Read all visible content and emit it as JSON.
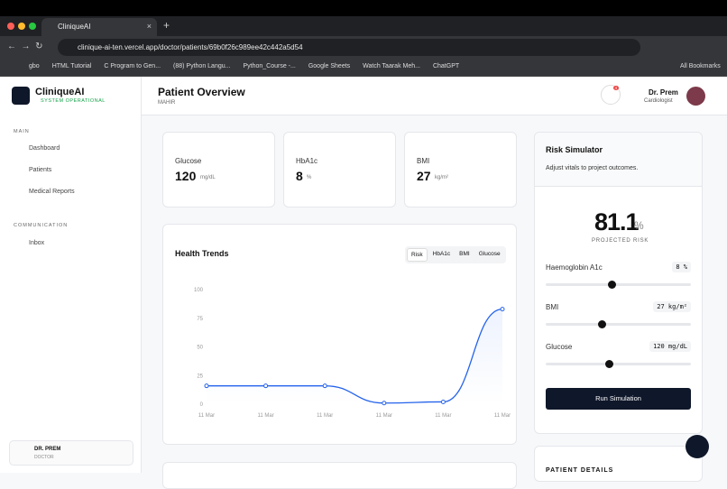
{
  "browser": {
    "tab_title": "CliniqueAI",
    "url": "clinique-ai-ten.vercel.app/doctor/patients/69b0f26c989ee42c442a5d54",
    "bookmarks": [
      "gbo",
      "HTML Tutorial",
      "C Program to Gen...",
      "(88) Python Langu...",
      "Python_Course -...",
      "Google Sheets",
      "Watch Taarak Meh...",
      "ChatGPT"
    ],
    "all_bookmarks": "All Bookmarks"
  },
  "sidebar": {
    "brand": "CliniqueAI",
    "status": "SYSTEM OPERATIONAL",
    "main_heading": "MAIN",
    "main_items": [
      "Dashboard",
      "Patients",
      "Medical Reports"
    ],
    "comm_heading": "COMMUNICATION",
    "comm_items": [
      "Inbox"
    ],
    "user_name": "DR. PREM",
    "user_role": "DOCTOR"
  },
  "header": {
    "title": "Patient Overview",
    "patient": "MAHIR",
    "notifications": "4",
    "doctor": "Dr. Prem",
    "specialty": "Cardiologist"
  },
  "vitals": [
    {
      "label": "Glucose",
      "value": "120",
      "unit": "mg/dL"
    },
    {
      "label": "HbA1c",
      "value": "8",
      "unit": "%"
    },
    {
      "label": "BMI",
      "value": "27",
      "unit": "kg/m²"
    }
  ],
  "health_trends": {
    "type": "line",
    "title": "Health Trends",
    "tabs": [
      "Risk",
      "HbA1c",
      "BMI",
      "Glucose"
    ],
    "categories": [
      "11 Mar",
      "11 Mar",
      "11 Mar",
      "11 Mar",
      "11 Mar",
      "11 Mar"
    ],
    "values": [
      16,
      16,
      16,
      1,
      2,
      83
    ],
    "color": "#2563eb",
    "ylim": [
      0,
      100
    ],
    "yticks": [
      0,
      25,
      50,
      75,
      100
    ]
  },
  "risk_simulator": {
    "title": "Risk Simulator",
    "subtitle": "Adjust vitals to project outcomes.",
    "risk": "81.1",
    "risk_unit": "%",
    "risk_label": "PROJECTED RISK",
    "sliders": [
      {
        "label": "Haemoglobin A1c",
        "value": "8 %"
      },
      {
        "label": "BMI",
        "value": "27 kg/m²"
      },
      {
        "label": "Glucose",
        "value": "120 mg/dL"
      }
    ],
    "button": "Run Simulation"
  },
  "patient_details": "PATIENT DETAILS"
}
